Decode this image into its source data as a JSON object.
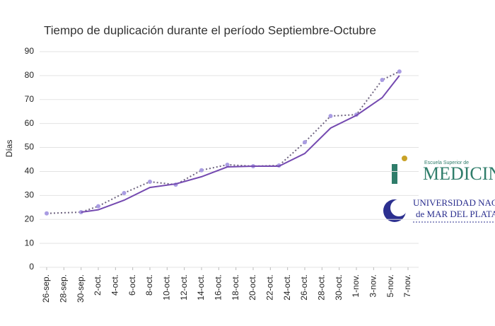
{
  "chart_data": {
    "type": "line",
    "title": "Tiempo de duplicación durante el período Septiembre-Octubre",
    "y_label": "Días",
    "x": [
      0,
      4,
      6,
      9,
      12,
      15,
      18,
      21,
      24,
      27,
      30,
      33,
      36,
      39,
      41
    ],
    "series": [
      {
        "color": "#6f6480",
        "style": "dotted",
        "markers": true,
        "marker_color": "#a99ce2",
        "values": [
          22.5,
          23,
          25.5,
          31,
          35.7,
          34.5,
          40.5,
          42.8,
          42.2,
          42.5,
          52.2,
          63.1,
          63.7,
          78.2,
          81.7
        ]
      },
      {
        "color": "#7449b0",
        "style": "solid",
        "markers": false,
        "values": [
          null,
          23,
          24,
          28,
          33.3,
          34.8,
          37.8,
          41.9,
          42.2,
          42.2,
          47.5,
          58.1,
          63.4,
          70.8,
          80
        ]
      }
    ],
    "xlim": [
      0,
      42
    ],
    "xticks": [
      {
        "value": 0,
        "label": "26-sep."
      },
      {
        "value": 2,
        "label": "28-sep."
      },
      {
        "value": 4,
        "label": "30-sep."
      },
      {
        "value": 6,
        "label": "2-oct."
      },
      {
        "value": 8,
        "label": "4-oct."
      },
      {
        "value": 10,
        "label": "6-oct."
      },
      {
        "value": 12,
        "label": "8-oct."
      },
      {
        "value": 14,
        "label": "10-oct."
      },
      {
        "value": 16,
        "label": "12-oct."
      },
      {
        "value": 18,
        "label": "14-oct."
      },
      {
        "value": 20,
        "label": "16-oct."
      },
      {
        "value": 22,
        "label": "18-oct."
      },
      {
        "value": 24,
        "label": "20-oct."
      },
      {
        "value": 26,
        "label": "22-oct."
      },
      {
        "value": 28,
        "label": "24-oct."
      },
      {
        "value": 30,
        "label": "26-oct."
      },
      {
        "value": 32,
        "label": "28-oct."
      },
      {
        "value": 34,
        "label": "30-oct."
      },
      {
        "value": 36,
        "label": "1-nov."
      },
      {
        "value": 38,
        "label": "3-nov."
      },
      {
        "value": 40,
        "label": "5-nov."
      },
      {
        "value": 42,
        "label": "7-nov."
      }
    ],
    "ylim": [
      0,
      90
    ],
    "yticks": [
      0,
      10,
      20,
      30,
      40,
      50,
      60,
      70,
      80,
      90
    ],
    "grid": true
  },
  "logos": {
    "school_small": "Escuela Superior de",
    "school": "MEDICINA",
    "university": "UNIVERSIDAD NACIONAL",
    "university_city": "de MAR DEL PLATA"
  }
}
